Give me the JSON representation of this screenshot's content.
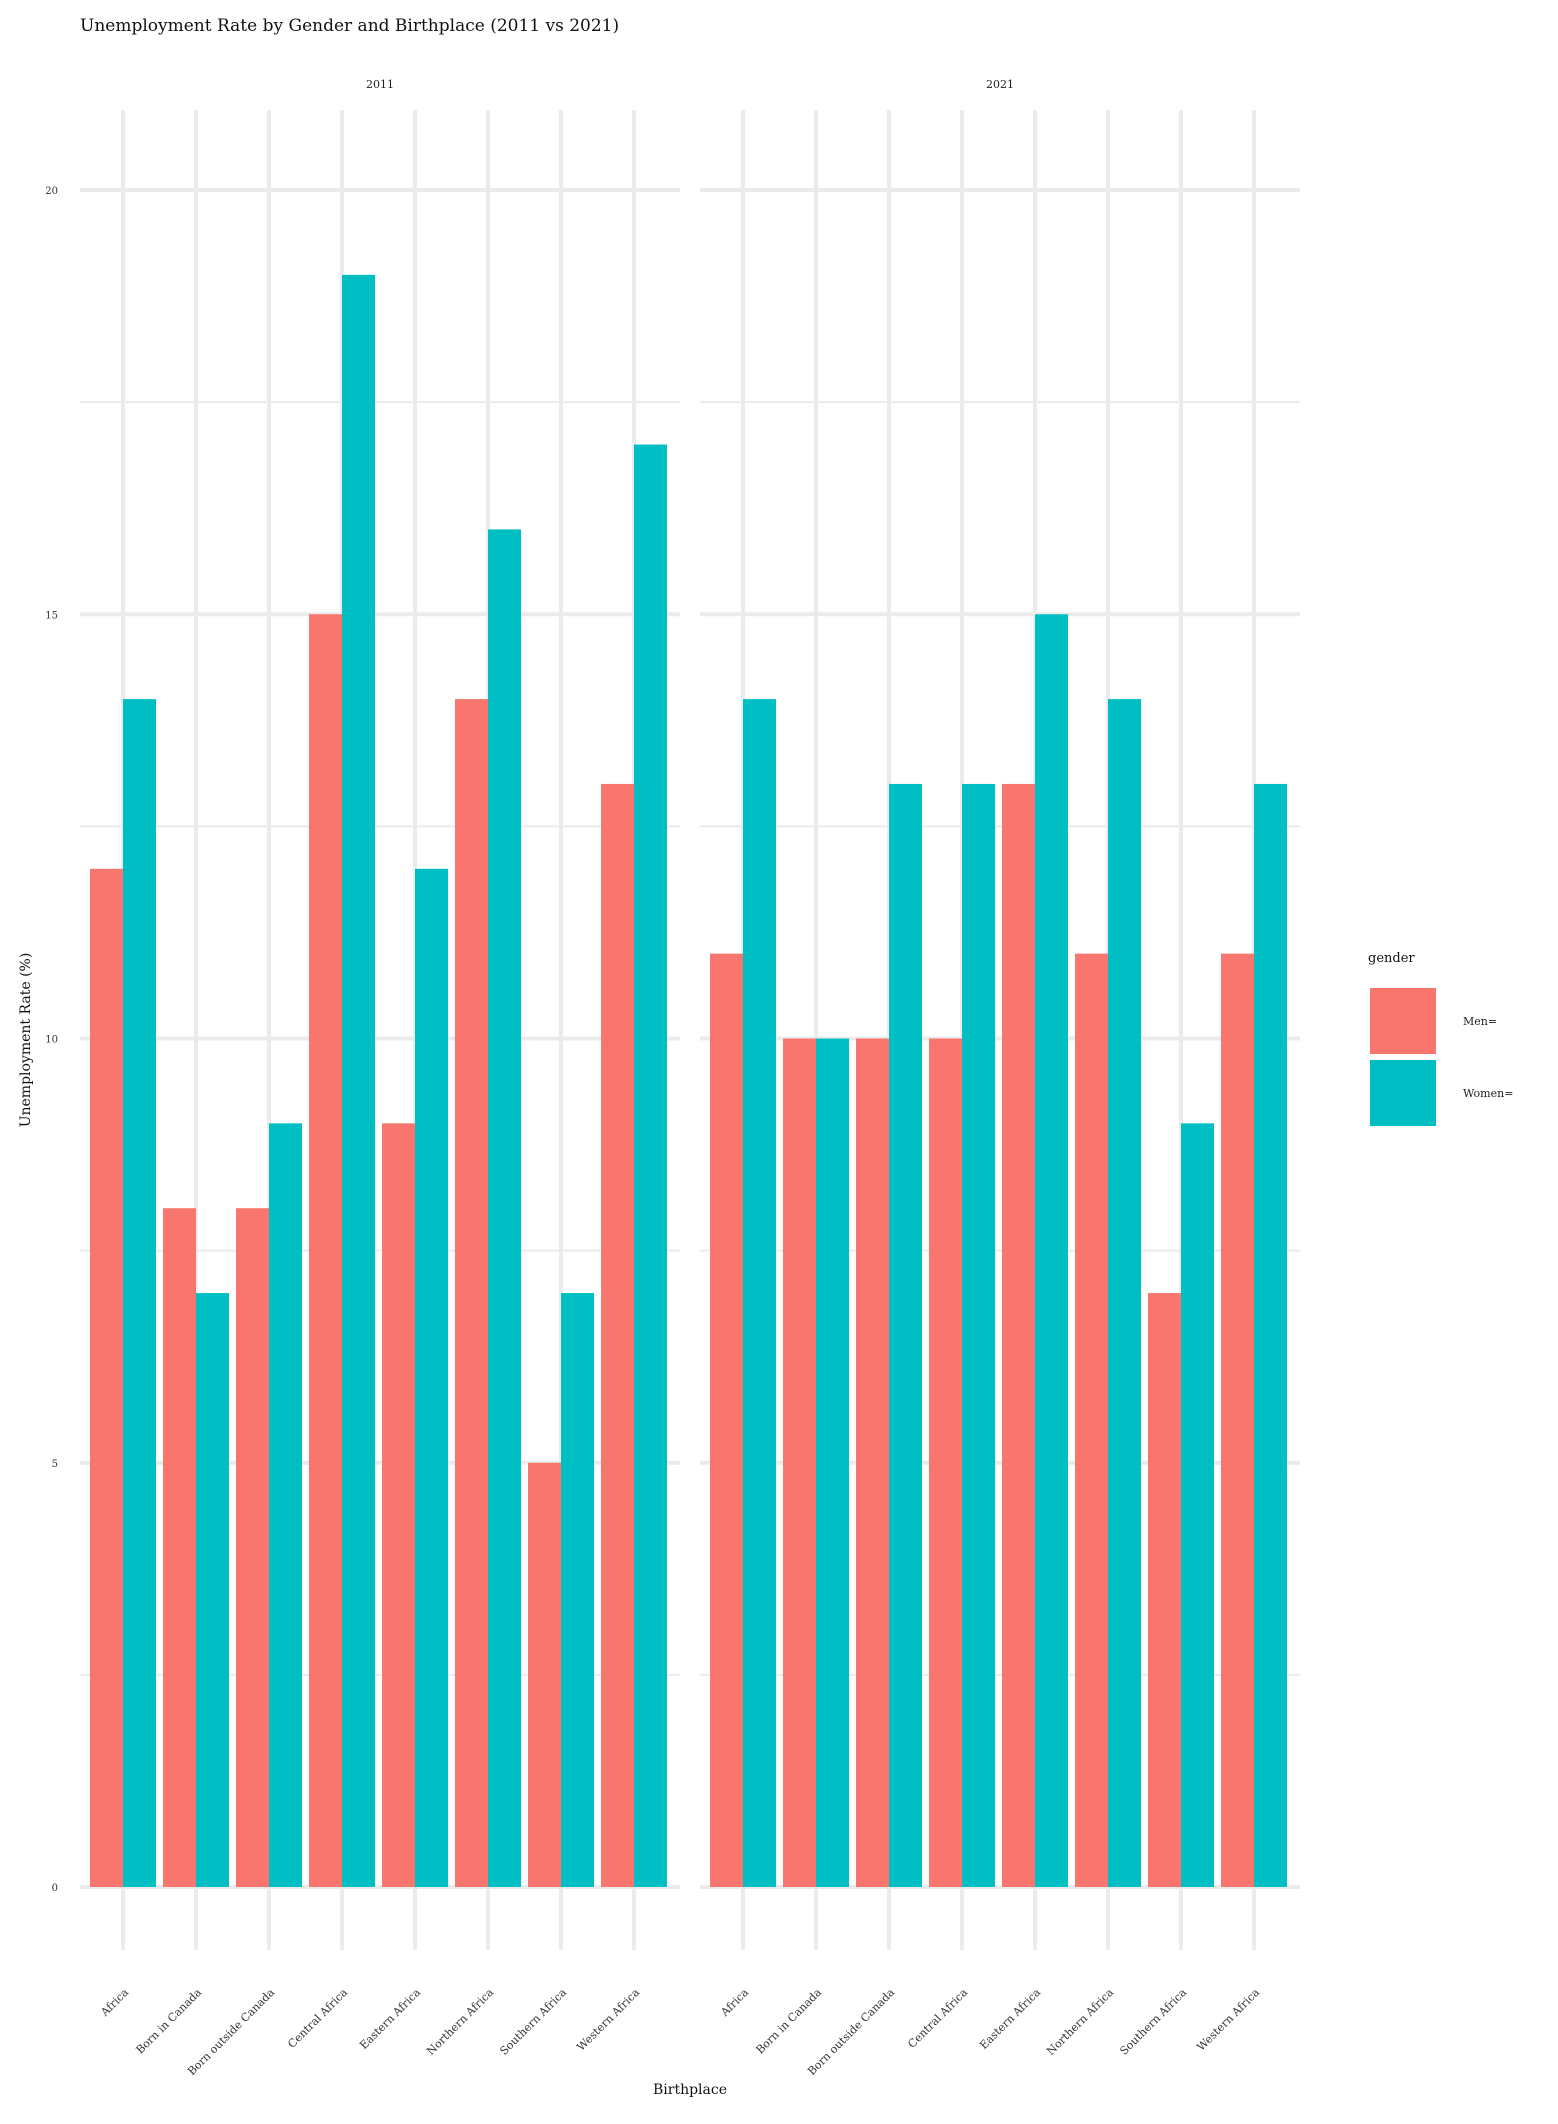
{
  "chart_data": {
    "type": "bar",
    "title": "Unemployment Rate by Gender and Birthplace (2011 vs 2021)",
    "xlabel": "Birthplace",
    "ylabel": "Unemployment Rate (%)",
    "ylim": [
      0,
      20
    ],
    "y_ticks": [
      0,
      5,
      10,
      15,
      20
    ],
    "grid": true,
    "legend": {
      "title": "gender",
      "position": "right"
    },
    "categories": [
      "Africa",
      "Born in Canada",
      "Born outside Canada",
      "Central Africa",
      "Eastern Africa",
      "Northern Africa",
      "Southern Africa",
      "Western Africa"
    ],
    "colors": {
      "Men=": "#F8766D",
      "Women=": "#00BFC4"
    },
    "facets": [
      {
        "label": "2011",
        "series": [
          {
            "name": "Men=",
            "values": [
              12,
              8,
              8,
              15,
              9,
              14,
              5,
              13
            ]
          },
          {
            "name": "Women=",
            "values": [
              14,
              7,
              9,
              19,
              12,
              16,
              7,
              17
            ]
          }
        ]
      },
      {
        "label": "2021",
        "series": [
          {
            "name": "Men=",
            "values": [
              11,
              10,
              10,
              10,
              13,
              11,
              7,
              11
            ]
          },
          {
            "name": "Women=",
            "values": [
              14,
              10,
              13,
              13,
              15,
              14,
              9,
              13
            ]
          }
        ]
      }
    ]
  }
}
